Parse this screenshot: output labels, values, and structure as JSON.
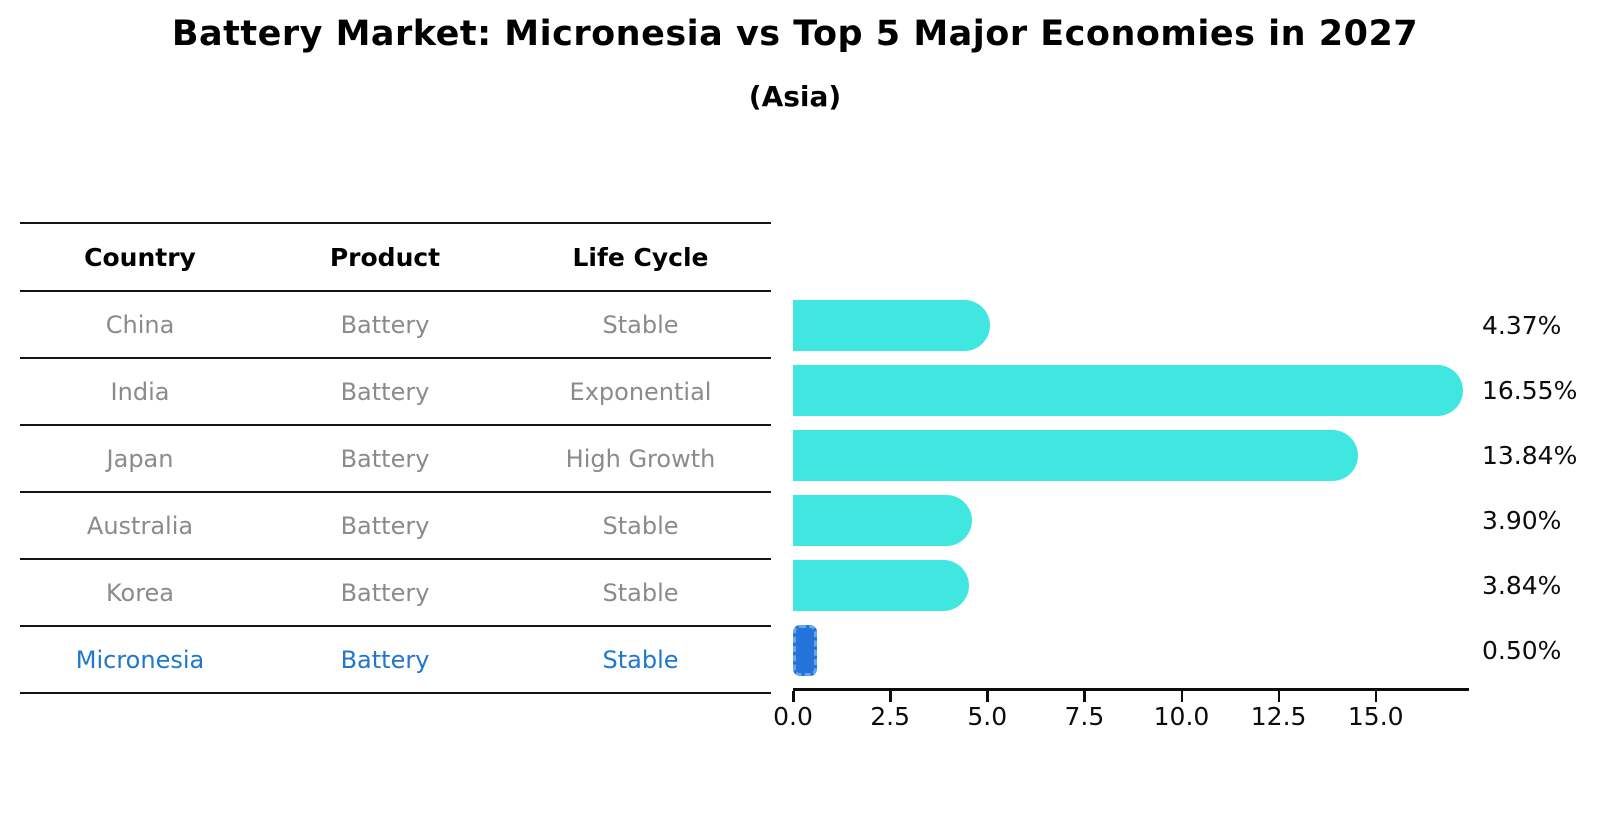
{
  "title": "Battery Market: Micronesia vs Top 5 Major Economies in 2027",
  "subtitle": "(Asia)",
  "table": {
    "headers": [
      "Country",
      "Product",
      "Life Cycle"
    ],
    "rows": [
      {
        "country": "China",
        "product": "Battery",
        "life_cycle": "Stable",
        "highlight": false
      },
      {
        "country": "India",
        "product": "Battery",
        "life_cycle": "Exponential",
        "highlight": false
      },
      {
        "country": "Japan",
        "product": "Battery",
        "life_cycle": "High Growth",
        "highlight": false
      },
      {
        "country": "Australia",
        "product": "Battery",
        "life_cycle": "Stable",
        "highlight": false
      },
      {
        "country": "Korea",
        "product": "Battery",
        "life_cycle": "Stable",
        "highlight": false
      },
      {
        "country": "Micronesia",
        "product": "Battery",
        "life_cycle": "Stable",
        "highlight": true
      }
    ]
  },
  "chart_data": {
    "type": "bar",
    "orientation": "horizontal",
    "title": "Battery Market: Micronesia vs Top 5 Major Economies in 2027",
    "subtitle": "(Asia)",
    "categories": [
      "China",
      "India",
      "Japan",
      "Australia",
      "Korea",
      "Micronesia"
    ],
    "values": [
      4.37,
      16.55,
      13.84,
      3.9,
      3.84,
      0.5
    ],
    "value_labels": [
      "4.37%",
      "16.55%",
      "13.84%",
      "3.90%",
      "3.84%",
      "0.50%"
    ],
    "x_tick_labels": [
      "0.0",
      "2.5",
      "5.0",
      "7.5",
      "10.0",
      "12.5",
      "15.0"
    ],
    "x_tick_values": [
      0,
      2.5,
      5,
      7.5,
      10,
      12.5,
      15
    ],
    "xlim": [
      0,
      17.4
    ],
    "grid": false,
    "legend": null,
    "bar_color": "#40e7e0",
    "highlight_bar_color": "#2373da",
    "highlight_text_color": "#2077cb",
    "highlight_index": 5
  }
}
